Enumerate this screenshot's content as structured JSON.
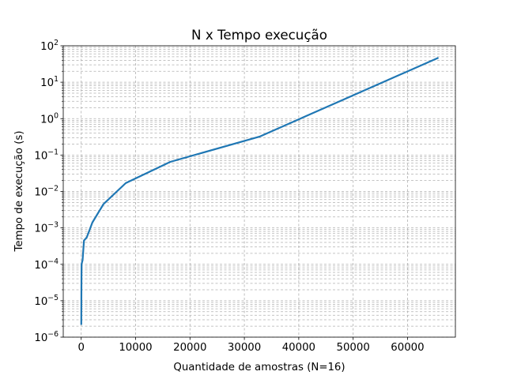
{
  "chart_data": {
    "type": "line",
    "title": "N x Tempo execução",
    "xlabel": "Quantidade de amostras (N=16)",
    "ylabel": "Tempo de execução (s)",
    "xlim": [
      -3300,
      68800
    ],
    "ylim": [
      1e-06,
      100
    ],
    "yscale": "log",
    "grid": true,
    "grid_style": "dashed, major and minor on y, major on x",
    "line_color": "#1f77b4",
    "x_ticks": [
      0,
      10000,
      20000,
      30000,
      40000,
      50000,
      60000
    ],
    "x_tick_labels": [
      "0",
      "10000",
      "20000",
      "30000",
      "40000",
      "50000",
      "60000"
    ],
    "y_tick_exponents": [
      -6,
      -5,
      -4,
      -3,
      -2,
      -1,
      0,
      1,
      2
    ],
    "y_tick_base": "10",
    "series": [
      {
        "x": [
          16,
          32,
          64,
          128,
          256,
          512,
          1024,
          2048,
          4096,
          8192,
          16384,
          32768,
          65536
        ],
        "y": [
          2.3e-06,
          1.1e-05,
          0.0001,
          0.00011,
          0.00013,
          0.00045,
          0.00055,
          0.0014,
          0.0045,
          0.017,
          0.065,
          0.32,
          46
        ]
      }
    ]
  }
}
